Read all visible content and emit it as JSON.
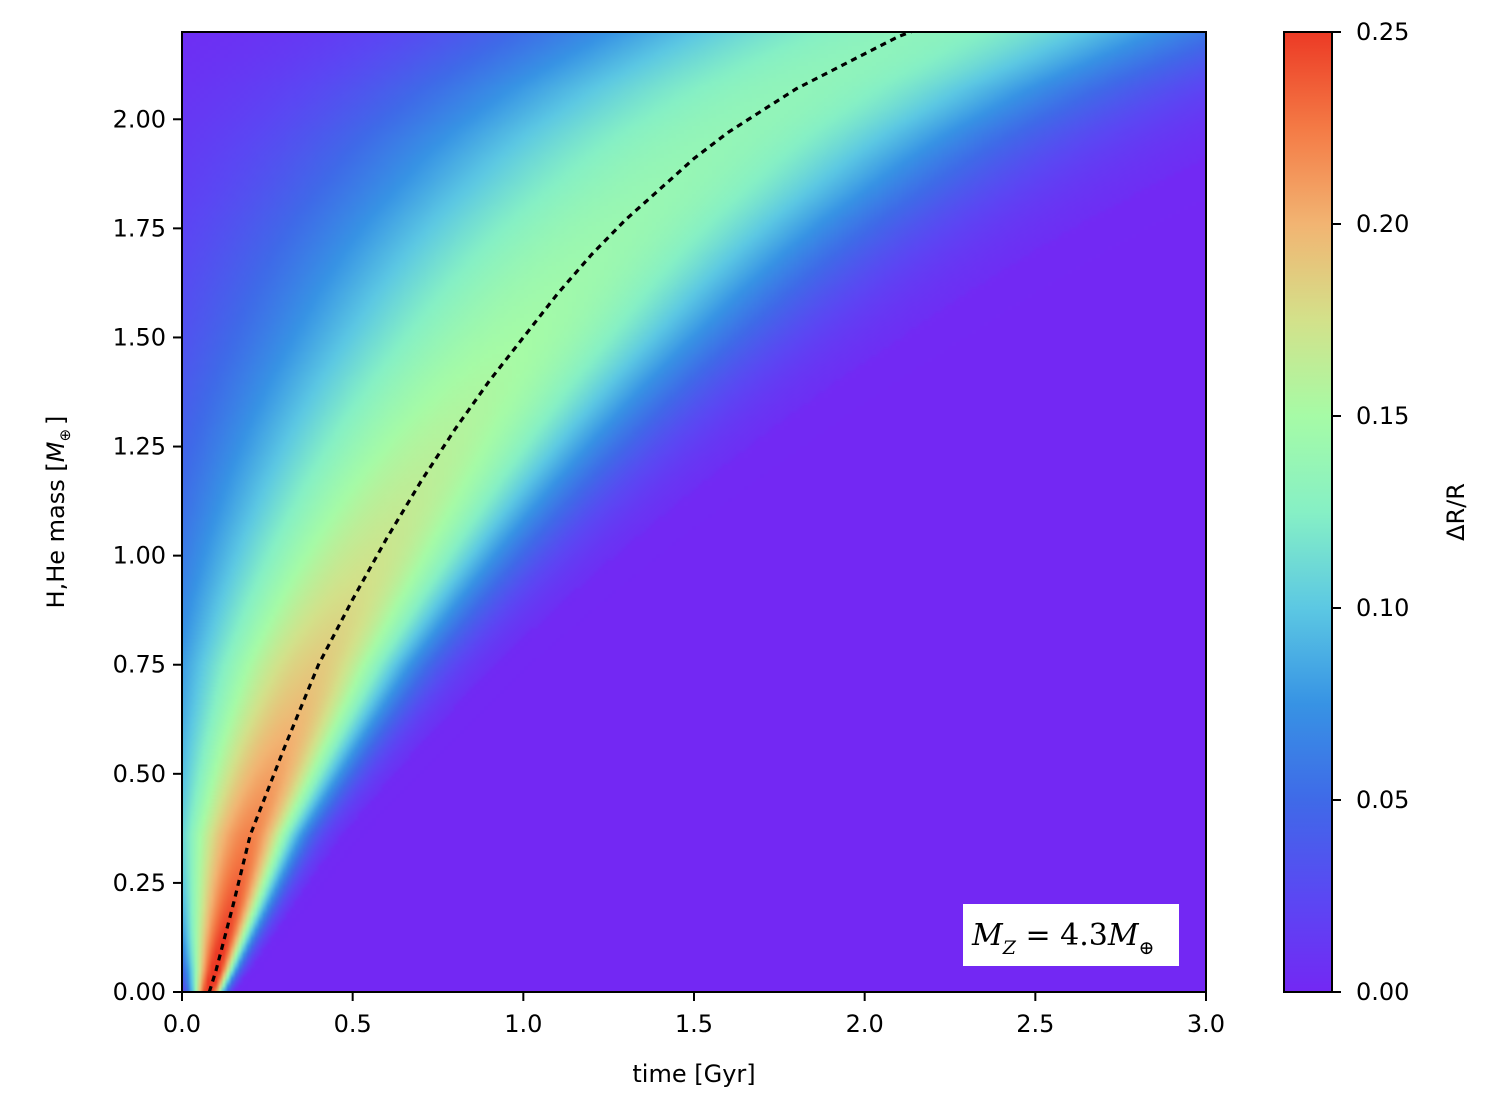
{
  "chart_data": {
    "type": "heatmap",
    "title": "",
    "xlabel": "time [Gyr]",
    "ylabel": "H,He mass [",
    "ylabel_symbol": "M",
    "ylabel_symbol_sub": "⊕",
    "ylabel_close": "]",
    "xlim": [
      0.0,
      3.0
    ],
    "ylim": [
      0.0,
      2.2
    ],
    "x_ticks": [
      0.0,
      0.5,
      1.0,
      1.5,
      2.0,
      2.5,
      3.0
    ],
    "x_tick_labels": [
      "0.0",
      "0.5",
      "1.0",
      "1.5",
      "2.0",
      "2.5",
      "3.0"
    ],
    "y_ticks": [
      0.0,
      0.25,
      0.5,
      0.75,
      1.0,
      1.25,
      1.5,
      1.75,
      2.0
    ],
    "y_tick_labels": [
      "0.00",
      "0.25",
      "0.50",
      "0.75",
      "1.00",
      "1.25",
      "1.50",
      "1.75",
      "2.00"
    ],
    "colorbar": {
      "label": "ΔR/R",
      "range": [
        0.0,
        0.25
      ],
      "ticks": [
        0.0,
        0.05,
        0.1,
        0.15,
        0.2,
        0.25
      ],
      "tick_labels": [
        "0.00",
        "0.05",
        "0.10",
        "0.15",
        "0.20",
        "0.25"
      ],
      "colormap": "rainbow"
    },
    "dashed_curve": {
      "style": "dotted",
      "color": "#000000",
      "x": [
        0.08,
        0.1,
        0.15,
        0.2,
        0.3,
        0.4,
        0.5,
        0.6,
        0.7,
        0.8,
        0.9,
        1.0,
        1.1,
        1.2,
        1.3,
        1.4,
        1.5,
        1.6,
        1.7,
        1.8,
        1.9,
        2.0,
        2.1,
        2.2
      ],
      "y": [
        0.0,
        0.05,
        0.2,
        0.36,
        0.56,
        0.75,
        0.9,
        1.04,
        1.17,
        1.29,
        1.4,
        1.5,
        1.6,
        1.69,
        1.77,
        1.84,
        1.91,
        1.97,
        2.02,
        2.07,
        2.11,
        2.15,
        2.19,
        2.22
      ]
    },
    "annotation": {
      "lhs": "M",
      "lhs_sub": "Z",
      "equals": " = 4.3",
      "rhs": "M",
      "rhs_sub": "⊕"
    },
    "grid": false,
    "legend": "none"
  }
}
